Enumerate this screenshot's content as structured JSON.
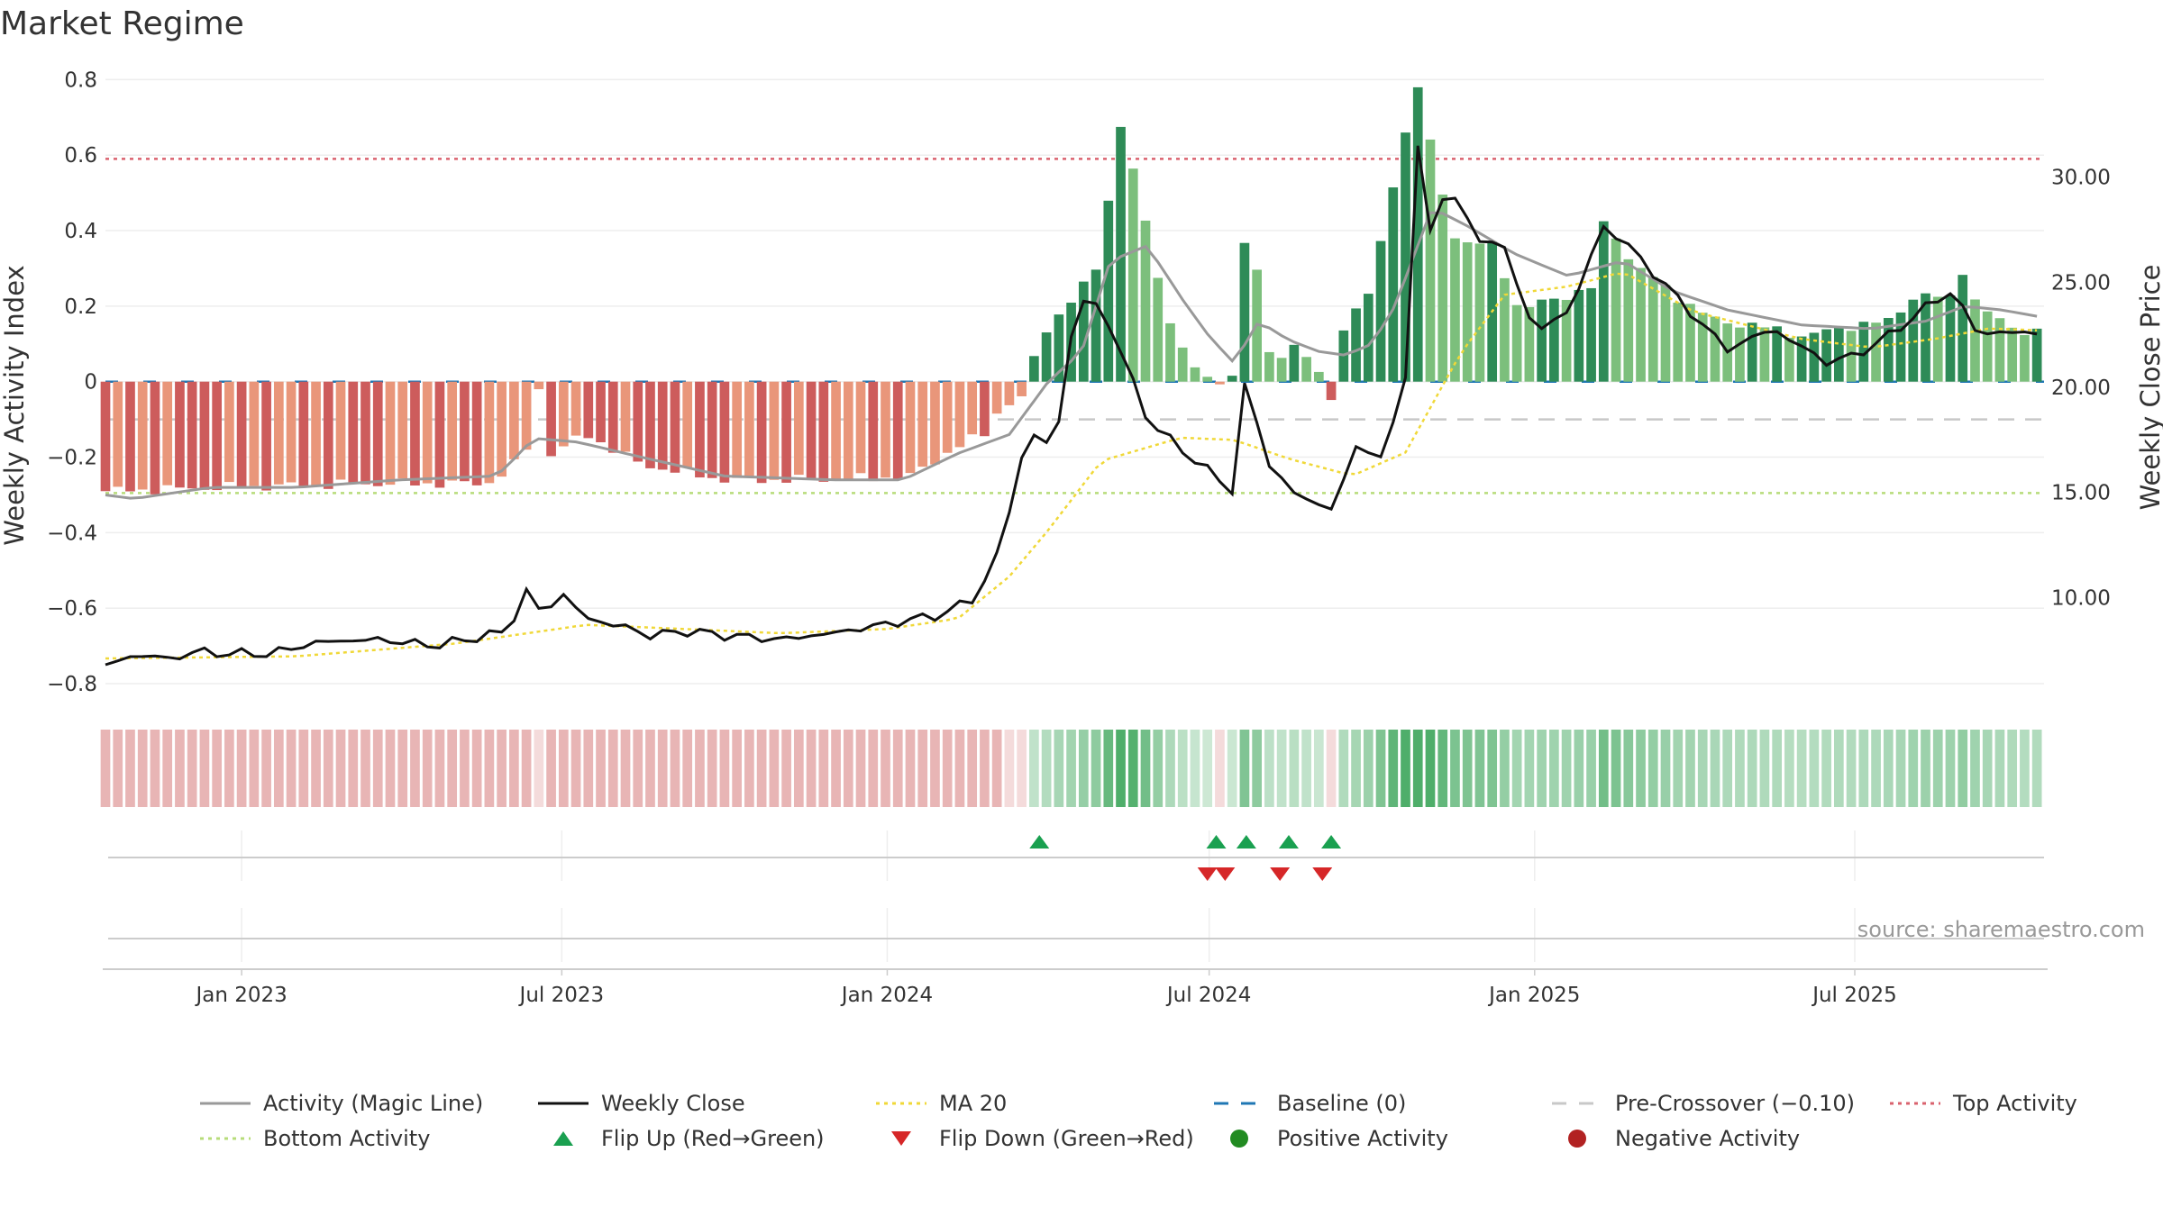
{
  "chart_data": {
    "type": "bar",
    "title": "Market Regime",
    "source_label": "source: sharemaestro.com",
    "left_axis": {
      "label": "Weekly Activity Index",
      "range": [
        -0.85,
        0.82
      ],
      "ticks": [
        "0.8",
        "0.6",
        "0.4",
        "0.2",
        "0",
        "−0.2",
        "−0.4",
        "−0.6",
        "−0.8"
      ],
      "tick_values": [
        0.8,
        0.6,
        0.4,
        0.2,
        0,
        -0.2,
        -0.4,
        -0.6,
        -0.8
      ]
    },
    "right_axis": {
      "label": "Weekly Close Price",
      "range": [
        5.0,
        35.0
      ],
      "ticks": [
        "30.00",
        "25.00",
        "20.00",
        "15.00",
        "10.00"
      ],
      "tick_values": [
        30,
        25,
        20,
        15,
        10
      ]
    },
    "x_axis": {
      "start": "2022-10-16",
      "end": "2025-10-16",
      "ticks": [
        {
          "date": "2023-01-01",
          "label": "Jan 2023"
        },
        {
          "date": "2023-07-01",
          "label": "Jul 2023"
        },
        {
          "date": "2024-01-01",
          "label": "Jan 2024"
        },
        {
          "date": "2024-07-01",
          "label": "Jul 2024"
        },
        {
          "date": "2025-01-01",
          "label": "Jan 2025"
        },
        {
          "date": "2025-07-01",
          "label": "Jul 2025"
        }
      ]
    },
    "levels": {
      "top_activity": 0.59,
      "bottom_activity": -0.295,
      "baseline": 0,
      "pre_crossover": -0.1
    },
    "series": [
      {
        "name": "Weekly Activity Index",
        "kind": "bar",
        "anchor_points": [
          [
            "2022-10-16",
            -0.29
          ],
          [
            "2022-12-20",
            -0.28
          ],
          [
            "2023-03-20",
            -0.27
          ],
          [
            "2023-05-20",
            -0.27
          ],
          [
            "2023-06-10",
            -0.2
          ],
          [
            "2023-06-18",
            -0.02
          ],
          [
            "2023-06-25",
            -0.19
          ],
          [
            "2023-07-15",
            -0.14
          ],
          [
            "2023-08-15",
            -0.22
          ],
          [
            "2023-10-01",
            -0.26
          ],
          [
            "2023-12-01",
            -0.26
          ],
          [
            "2024-01-15",
            -0.25
          ],
          [
            "2024-02-10",
            -0.17
          ],
          [
            "2024-02-25",
            -0.14
          ],
          [
            "2024-03-03",
            -0.08
          ],
          [
            "2024-03-20",
            -0.03
          ],
          [
            "2024-03-27",
            0.12
          ],
          [
            "2024-04-15",
            0.22
          ],
          [
            "2024-04-29",
            0.3
          ],
          [
            "2024-05-06",
            0.52
          ],
          [
            "2024-05-13",
            0.7
          ],
          [
            "2024-05-27",
            0.39
          ],
          [
            "2024-06-10",
            0.14
          ],
          [
            "2024-06-24",
            0.03
          ],
          [
            "2024-07-01",
            0.01
          ],
          [
            "2024-07-08",
            -0.01
          ],
          [
            "2024-07-15",
            0.02
          ],
          [
            "2024-07-22",
            0.43
          ],
          [
            "2024-07-29",
            0.26
          ],
          [
            "2024-08-05",
            0.05
          ],
          [
            "2024-08-19",
            0.1
          ],
          [
            "2024-09-02",
            0.02
          ],
          [
            "2024-09-09",
            -0.06
          ],
          [
            "2024-09-16",
            0.17
          ],
          [
            "2024-09-30",
            0.23
          ],
          [
            "2024-10-14",
            0.55
          ],
          [
            "2024-10-28",
            0.8
          ],
          [
            "2024-11-04",
            0.6
          ],
          [
            "2024-11-18",
            0.37
          ],
          [
            "2024-12-09",
            0.36
          ],
          [
            "2024-12-23",
            0.19
          ],
          [
            "2025-01-13",
            0.22
          ],
          [
            "2025-02-03",
            0.25
          ],
          [
            "2025-02-10",
            0.44
          ],
          [
            "2025-02-24",
            0.32
          ],
          [
            "2025-03-24",
            0.22
          ],
          [
            "2025-04-14",
            0.16
          ],
          [
            "2025-05-05",
            0.15
          ],
          [
            "2025-06-02",
            0.12
          ],
          [
            "2025-06-30",
            0.15
          ],
          [
            "2025-07-21",
            0.16
          ],
          [
            "2025-08-04",
            0.23
          ],
          [
            "2025-08-25",
            0.22
          ],
          [
            "2025-09-01",
            0.31
          ],
          [
            "2025-09-08",
            0.2
          ],
          [
            "2025-09-29",
            0.14
          ],
          [
            "2025-10-16",
            0.13
          ]
        ]
      },
      {
        "name": "Activity (Magic Line)",
        "kind": "line",
        "anchor_points": [
          [
            "2022-10-16",
            -0.3
          ],
          [
            "2022-11-01",
            -0.31
          ],
          [
            "2022-12-15",
            -0.28
          ],
          [
            "2023-02-01",
            -0.28
          ],
          [
            "2023-04-01",
            -0.26
          ],
          [
            "2023-05-25",
            -0.25
          ],
          [
            "2023-06-05",
            -0.2
          ],
          [
            "2023-06-15",
            -0.15
          ],
          [
            "2023-07-10",
            -0.16
          ],
          [
            "2023-08-15",
            -0.2
          ],
          [
            "2023-10-01",
            -0.25
          ],
          [
            "2023-12-01",
            -0.26
          ],
          [
            "2024-01-10",
            -0.26
          ],
          [
            "2024-02-10",
            -0.19
          ],
          [
            "2024-03-10",
            -0.14
          ],
          [
            "2024-04-01",
            0
          ],
          [
            "2024-04-20",
            0.08
          ],
          [
            "2024-05-06",
            0.32
          ],
          [
            "2024-05-27",
            0.36
          ],
          [
            "2024-06-17",
            0.21
          ],
          [
            "2024-07-01",
            0.12
          ],
          [
            "2024-07-15",
            0.05
          ],
          [
            "2024-07-29",
            0.16
          ],
          [
            "2024-08-15",
            0.11
          ],
          [
            "2024-09-01",
            0.08
          ],
          [
            "2024-09-16",
            0.07
          ],
          [
            "2024-10-01",
            0.1
          ],
          [
            "2024-10-14",
            0.2
          ],
          [
            "2024-11-04",
            0.46
          ],
          [
            "2024-11-25",
            0.41
          ],
          [
            "2024-12-20",
            0.34
          ],
          [
            "2025-01-20",
            0.28
          ],
          [
            "2025-02-20",
            0.32
          ],
          [
            "2025-03-20",
            0.24
          ],
          [
            "2025-04-20",
            0.19
          ],
          [
            "2025-06-01",
            0.15
          ],
          [
            "2025-07-10",
            0.14
          ],
          [
            "2025-08-10",
            0.16
          ],
          [
            "2025-09-01",
            0.2
          ],
          [
            "2025-09-22",
            0.19
          ],
          [
            "2025-10-16",
            0.17
          ]
        ]
      },
      {
        "name": "Weekly Close",
        "kind": "line",
        "axis": "right",
        "anchor_points": [
          [
            "2022-10-16",
            6.8
          ],
          [
            "2022-11-10",
            7.4
          ],
          [
            "2022-11-17",
            6.9
          ],
          [
            "2022-12-01",
            7.4
          ],
          [
            "2023-01-15",
            7.3
          ],
          [
            "2023-02-15",
            7.9
          ],
          [
            "2023-03-20",
            8.0
          ],
          [
            "2023-04-20",
            7.7
          ],
          [
            "2023-05-20",
            8.2
          ],
          [
            "2023-06-01",
            8.4
          ],
          [
            "2023-06-10",
            10.4
          ],
          [
            "2023-06-20",
            9.2
          ],
          [
            "2023-07-01",
            10.2
          ],
          [
            "2023-07-15",
            9.0
          ],
          [
            "2023-08-05",
            8.6
          ],
          [
            "2023-08-20",
            8.2
          ],
          [
            "2023-09-10",
            8.4
          ],
          [
            "2023-10-01",
            8.2
          ],
          [
            "2023-11-01",
            8.0
          ],
          [
            "2023-12-01",
            8.3
          ],
          [
            "2024-01-05",
            8.8
          ],
          [
            "2024-02-01",
            9.2
          ],
          [
            "2024-02-20",
            10.0
          ],
          [
            "2024-03-05",
            12.3
          ],
          [
            "2024-03-20",
            17.8
          ],
          [
            "2024-04-05",
            17.2
          ],
          [
            "2024-04-17",
            24.2
          ],
          [
            "2024-05-01",
            23.8
          ],
          [
            "2024-05-13",
            21.5
          ],
          [
            "2024-05-27",
            18.5
          ],
          [
            "2024-06-10",
            17.4
          ],
          [
            "2024-07-01",
            16.0
          ],
          [
            "2024-07-15",
            15.0
          ],
          [
            "2024-07-22",
            20.9
          ],
          [
            "2024-08-01",
            16.6
          ],
          [
            "2024-08-20",
            14.8
          ],
          [
            "2024-09-10",
            14.2
          ],
          [
            "2024-09-23",
            17.5
          ],
          [
            "2024-10-07",
            16.4
          ],
          [
            "2024-10-21",
            21.0
          ],
          [
            "2024-10-28",
            33.0
          ],
          [
            "2024-11-04",
            26.5
          ],
          [
            "2024-11-11",
            29.6
          ],
          [
            "2024-12-01",
            27.1
          ],
          [
            "2024-12-15",
            26.6
          ],
          [
            "2025-01-01",
            22.6
          ],
          [
            "2025-01-20",
            23.6
          ],
          [
            "2025-02-10",
            27.8
          ],
          [
            "2025-03-10",
            25.4
          ],
          [
            "2025-04-01",
            23.4
          ],
          [
            "2025-04-20",
            21.8
          ],
          [
            "2025-05-15",
            22.8
          ],
          [
            "2025-06-15",
            21.2
          ],
          [
            "2025-07-01",
            21.5
          ],
          [
            "2025-07-21",
            22.5
          ],
          [
            "2025-08-10",
            23.8
          ],
          [
            "2025-08-25",
            24.6
          ],
          [
            "2025-09-08",
            22.6
          ],
          [
            "2025-10-16",
            22.6
          ]
        ]
      },
      {
        "name": "MA 20",
        "kind": "line",
        "axis": "right",
        "anchor_points": [
          [
            "2022-10-16",
            7.1
          ],
          [
            "2023-02-01",
            7.2
          ],
          [
            "2023-05-01",
            7.8
          ],
          [
            "2023-07-15",
            8.7
          ],
          [
            "2023-11-01",
            8.3
          ],
          [
            "2024-01-01",
            8.5
          ],
          [
            "2024-02-10",
            9.0
          ],
          [
            "2024-03-10",
            11.0
          ],
          [
            "2024-04-01",
            13.2
          ],
          [
            "2024-05-01",
            16.5
          ],
          [
            "2024-06-15",
            17.6
          ],
          [
            "2024-07-15",
            17.5
          ],
          [
            "2024-08-15",
            16.6
          ],
          [
            "2024-09-20",
            15.8
          ],
          [
            "2024-10-20",
            16.9
          ],
          [
            "2024-11-20",
            21.6
          ],
          [
            "2024-12-15",
            24.4
          ],
          [
            "2025-01-20",
            24.8
          ],
          [
            "2025-02-20",
            25.5
          ],
          [
            "2025-04-01",
            23.6
          ],
          [
            "2025-06-01",
            22.3
          ],
          [
            "2025-07-10",
            21.9
          ],
          [
            "2025-08-15",
            22.3
          ],
          [
            "2025-09-15",
            22.8
          ],
          [
            "2025-10-16",
            22.7
          ]
        ]
      },
      {
        "name": "Regime",
        "kind": "strip",
        "note": "weekly colour band mirroring the activity index sign and strength"
      },
      {
        "name": "Flip Up (Red→Green)",
        "kind": "marker",
        "dates": [
          "2024-03-27",
          "2024-07-05",
          "2024-07-22",
          "2024-08-15",
          "2024-09-08"
        ]
      },
      {
        "name": "Flip Down (Green→Red)",
        "kind": "marker",
        "dates": [
          "2024-06-30",
          "2024-07-10",
          "2024-08-10",
          "2024-09-03"
        ]
      }
    ],
    "colors": {
      "pos_strong": "#2e8b57",
      "pos_light": "#7cbf7c",
      "neg_strong": "#cd5c5c",
      "neg_light": "#e9967a",
      "magic_line": "#999999",
      "weekly_close": "#111111",
      "ma20": "#f0d838",
      "baseline": "#1f77b4",
      "pre_crossover": "#c8c8c8",
      "top_activity": "#d9626e",
      "bottom_activity": "#b7dc7a",
      "flip_up": "#1aa050",
      "flip_down": "#d62728",
      "positive_activity": "#228b22",
      "negative_activity": "#b22222"
    },
    "legend": {
      "placement": "bottom",
      "items": [
        {
          "label": "Activity (Magic Line)",
          "kind": "line",
          "color": "#999999"
        },
        {
          "label": "Weekly Close",
          "kind": "line",
          "color": "#111111"
        },
        {
          "label": "MA 20",
          "kind": "dotted",
          "color": "#f0d838"
        },
        {
          "label": "Baseline (0)",
          "kind": "dashed",
          "color": "#1f77b4"
        },
        {
          "label": "Pre-Crossover (−0.10)",
          "kind": "dashed",
          "color": "#c8c8c8"
        },
        {
          "label": "Top Activity",
          "kind": "dotted",
          "color": "#d9626e"
        },
        {
          "label": "Bottom Activity",
          "kind": "dotted",
          "color": "#b7dc7a"
        },
        {
          "label": "Flip Up (Red→Green)",
          "kind": "triangle-up",
          "color": "#1aa050"
        },
        {
          "label": "Flip Down (Green→Red)",
          "kind": "triangle-down",
          "color": "#d62728"
        },
        {
          "label": "Positive Activity",
          "kind": "dot",
          "color": "#228b22"
        },
        {
          "label": "Negative Activity",
          "kind": "dot",
          "color": "#b22222"
        }
      ]
    }
  }
}
